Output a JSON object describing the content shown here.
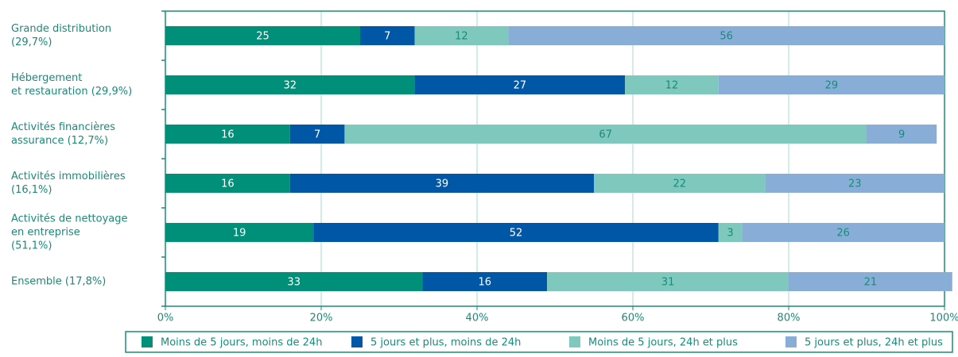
{
  "chart_data": {
    "type": "stacked-bar-horizontal",
    "categories": [
      [
        "Grande distribution",
        "(29,7%)"
      ],
      [
        "Hébergement",
        "et restauration (29,9%)"
      ],
      [
        "Activités financières",
        "assurance (12,7%)"
      ],
      [
        "Activités immobilières",
        "(16,1%)"
      ],
      [
        "Activités de nettoyage",
        "en entreprise",
        "(51,1%)"
      ],
      [
        "Ensemble (17,8%)"
      ]
    ],
    "series": [
      {
        "name": "Moins de 5 jours, moins de 24h",
        "color": "#00907a",
        "label_color": "#ffffff",
        "values": [
          25,
          32,
          16,
          16,
          19,
          33
        ]
      },
      {
        "name": "5 jours et plus, moins de 24h",
        "color": "#0057a6",
        "label_color": "#ffffff",
        "values": [
          7,
          27,
          7,
          39,
          52,
          16
        ]
      },
      {
        "name": "Moins de 5 jours, 24h et plus",
        "color": "#7fc8bd",
        "label_color": "#1a8a7a",
        "values": [
          12,
          12,
          67,
          22,
          3,
          31
        ]
      },
      {
        "name": "5 jours et plus, 24h et plus",
        "color": "#88aed8",
        "label_color": "#1a8a7a",
        "values": [
          56,
          29,
          9,
          23,
          26,
          21
        ]
      }
    ],
    "xlim": [
      0,
      100
    ],
    "xticks": [
      {
        "value": 0,
        "label": "0%"
      },
      {
        "value": 20,
        "label": "20%"
      },
      {
        "value": 40,
        "label": "40%"
      },
      {
        "value": 60,
        "label": "60%"
      },
      {
        "value": 80,
        "label": "80%"
      },
      {
        "value": 100,
        "label": "100%"
      }
    ],
    "grid": true
  }
}
